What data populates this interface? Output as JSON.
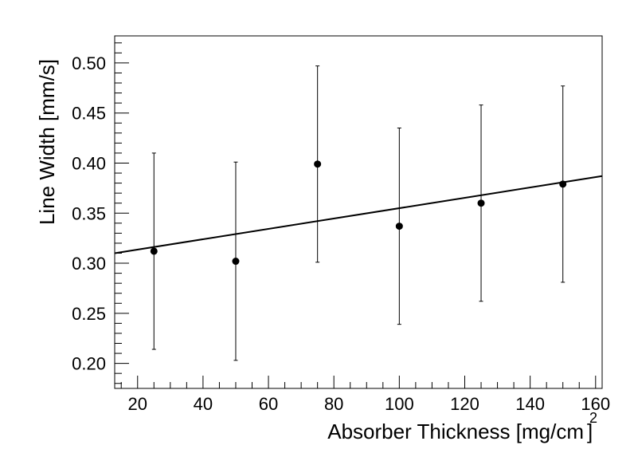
{
  "chart_data": {
    "type": "scatter",
    "xlabel": "Absorber Thickness [mg/cm",
    "xlabel_superscript": "2",
    "xlabel_suffix": "]",
    "ylabel": "Line Width [mm/s]",
    "xlim": [
      13,
      162
    ],
    "ylim": [
      0.175,
      0.527
    ],
    "x_ticks": [
      20,
      40,
      60,
      80,
      100,
      120,
      140,
      160
    ],
    "y_ticks": [
      0.2,
      0.25,
      0.3,
      0.35,
      0.4,
      0.45,
      0.5
    ],
    "x_tick_labels": [
      "20",
      "40",
      "60",
      "80",
      "100",
      "120",
      "140",
      "160"
    ],
    "y_tick_labels": [
      "0.20",
      "0.25",
      "0.30",
      "0.35",
      "0.40",
      "0.45",
      "0.50"
    ],
    "grid": false,
    "series": [
      {
        "x": [
          25,
          50,
          75,
          100,
          125,
          150
        ],
        "y": [
          0.312,
          0.302,
          0.399,
          0.337,
          0.36,
          0.379
        ],
        "yerr": [
          0.098,
          0.099,
          0.098,
          0.098,
          0.098,
          0.098
        ]
      }
    ],
    "fit_line": {
      "x": [
        13,
        162
      ],
      "y": [
        0.31,
        0.387
      ]
    },
    "colors": {
      "points": "#000000",
      "line": "#000000",
      "background": "#ffffff"
    }
  }
}
